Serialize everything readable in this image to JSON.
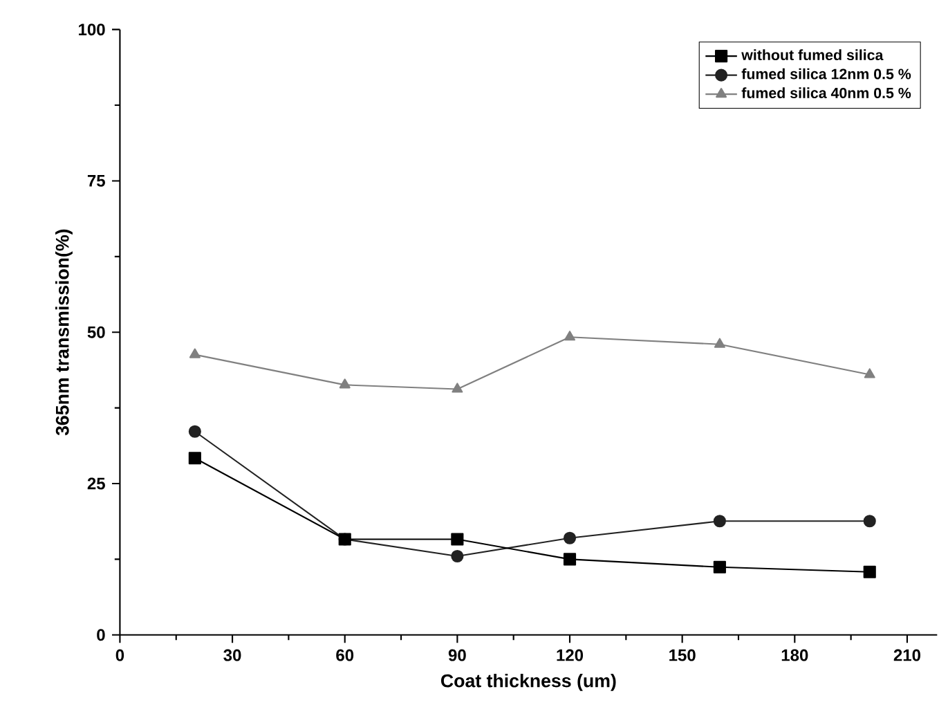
{
  "chart_data": {
    "type": "line",
    "xlabel": "Coat   thickness (um)",
    "ylabel": "365nm   transmission(%)",
    "xlim": [
      0,
      218
    ],
    "xticks": [
      0,
      30,
      60,
      90,
      120,
      150,
      180,
      210
    ],
    "ylim": [
      0,
      100
    ],
    "yticks": [
      0,
      25,
      50,
      75,
      100
    ],
    "legend": "top right",
    "grid": false,
    "x": [
      20,
      60,
      90,
      120,
      160,
      200
    ],
    "series": [
      {
        "name": "without fumed silica",
        "color": "#000000",
        "marker": "square",
        "values": [
          29.2,
          15.8,
          15.8,
          12.5,
          11.2,
          10.4
        ]
      },
      {
        "name": "fumed silica 12nm 0.5 %",
        "color": "#222222",
        "marker": "circle",
        "values": [
          33.6,
          15.8,
          13,
          16,
          18.8,
          18.8
        ]
      },
      {
        "name": "fumed silica 40nm 0.5 %",
        "color": "#808080",
        "marker": "triangle",
        "values": [
          46.3,
          41.3,
          40.6,
          49.2,
          48,
          43
        ]
      }
    ]
  }
}
